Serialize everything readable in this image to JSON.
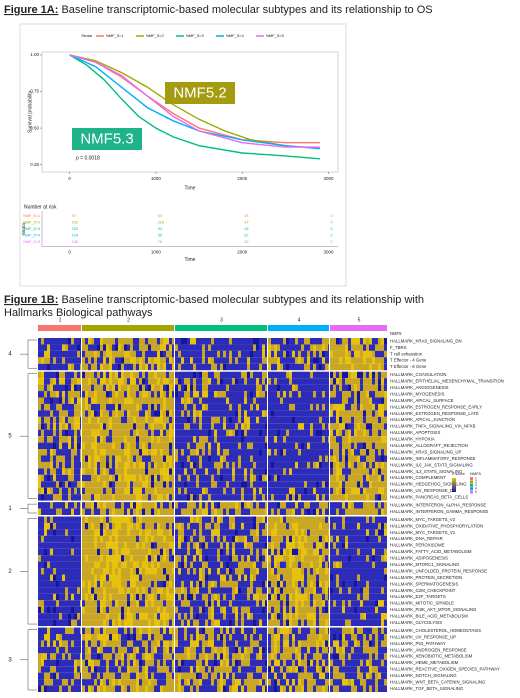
{
  "fig1a": {
    "label": "Figure 1A:",
    "text": " Baseline transcriptomic-based molecular subtypes and its relationship to OS"
  },
  "chart_data": {
    "type": "line",
    "legend_title": "Strata",
    "xlabel": "Time",
    "ylabel": "Survival probability",
    "xlim": [
      -320,
      3110
    ],
    "ylim": [
      0.2,
      1.02
    ],
    "xticks": [
      0,
      1000,
      2000,
      3000
    ],
    "yticks": [
      {
        "value": 1,
        "label": "1.00"
      },
      {
        "value": 0.75,
        "label": "0.75"
      },
      {
        "value": 0.5,
        "label": "0.50"
      },
      {
        "value": 0.25,
        "label": "0.25"
      }
    ],
    "pvalue": "p = 0.0018",
    "annotations": [
      {
        "text": "NMF5.2",
        "color": "#a49c10"
      },
      {
        "text": "NMF5.3",
        "color": "#1fb38a"
      }
    ],
    "series": [
      {
        "name": "NMF_5=1",
        "color": "#f8766d",
        "x": [
          0,
          300,
          600,
          900,
          1200,
          1500,
          2000,
          2500,
          2900
        ],
        "y": [
          1,
          0.95,
          0.85,
          0.72,
          0.6,
          0.5,
          0.42,
          0.4,
          0.4
        ]
      },
      {
        "name": "NMF_5=2",
        "color": "#a3a500",
        "x": [
          0,
          300,
          600,
          900,
          1200,
          1500,
          1800,
          2100,
          2500,
          2900
        ],
        "y": [
          1,
          0.96,
          0.88,
          0.78,
          0.66,
          0.56,
          0.48,
          0.42,
          0.38,
          0.36
        ]
      },
      {
        "name": "NMF_5=3",
        "color": "#00bf7d",
        "x": [
          0,
          200,
          400,
          600,
          800,
          1000,
          1200,
          1500,
          2000,
          2500,
          2900
        ],
        "y": [
          1,
          0.93,
          0.83,
          0.7,
          0.58,
          0.5,
          0.44,
          0.38,
          0.33,
          0.31,
          0.29
        ]
      },
      {
        "name": "NMF_5=4",
        "color": "#00b0f6",
        "x": [
          0,
          300,
          600,
          900,
          1200,
          1500,
          2000,
          2500,
          2900
        ],
        "y": [
          1,
          0.92,
          0.78,
          0.64,
          0.55,
          0.48,
          0.42,
          0.38,
          0.36
        ]
      },
      {
        "name": "NMF_5=5",
        "color": "#e76bf3",
        "x": [
          0,
          300,
          600,
          900,
          1200,
          1500,
          2000,
          2500,
          2900
        ],
        "y": [
          1,
          0.95,
          0.86,
          0.72,
          0.58,
          0.48,
          0.4,
          0.37,
          0.37
        ]
      }
    ]
  },
  "risk_table": {
    "title": "Number at risk",
    "ylabel": "Strata",
    "xlabel": "Time",
    "rows": [
      {
        "name": "NMF_5=1",
        "values": [
          97,
          60,
          15,
          0
        ]
      },
      {
        "name": "NMF_5=2",
        "values": [
          202,
          116,
          37,
          0
        ]
      },
      {
        "name": "NMF_5=3",
        "values": [
          203,
          94,
          18,
          0
        ]
      },
      {
        "name": "NMF_5=4",
        "values": [
          104,
          66,
          22,
          0
        ]
      },
      {
        "name": "NMF_5=5",
        "values": [
          136,
          78,
          25,
          0
        ]
      }
    ]
  },
  "fig1b": {
    "label": "Figure 1B:",
    "lines": [
      " Baseline transcriptomic-based molecular subtypes and its relationship with",
      "Hallmarks Biological pathways"
    ]
  },
  "heatmap": {
    "columns": [
      "1",
      "2",
      "3",
      "4",
      "5"
    ],
    "column_colors": [
      "#f8766d",
      "#a3a500",
      "#00bf7d",
      "#00b0f6",
      "#e76bf3"
    ],
    "annotation_title": "NMF5",
    "legend_title": "z score",
    "groups": [
      {
        "label": "4",
        "rows": [
          "HALLMARK_KRAS_SIGNALING_DN",
          "F_TBRS",
          "T cell exhaustion",
          "T Effector - 4 Gene",
          "T Effector - 8 Gene"
        ]
      },
      {
        "label": "5",
        "rows": [
          "HALLMARK_COAGULATION",
          "HALLMARK_EPITHELIAL_MESENCHYMAL_TRANSITION",
          "HALLMARK_ANGIOGENESIS",
          "HALLMARK_MYOGENESIS",
          "HALLMARK_APICAL_SURFACE",
          "HALLMARK_ESTROGEN_RESPONSE_EARLY",
          "HALLMARK_ESTROGEN_RESPONSE_LATE",
          "HALLMARK_APICAL_JUNCTION",
          "HALLMARK_TNFA_SIGNALING_VIA_NFKB",
          "HALLMARK_APOPTOSIS",
          "HALLMARK_HYPOXIA",
          "HALLMARK_ALLOGRAFT_REJECTION",
          "HALLMARK_KRAS_SIGNALING_UP",
          "HALLMARK_INFLAMMATORY_RESPONSE",
          "HALLMARK_IL6_JAK_STAT3_SIGNALING",
          "HALLMARK_IL2_STAT5_SIGNALING",
          "HALLMARK_COMPLEMENT",
          "HALLMARK_HEDGEHOG_SIGNALING",
          "HALLMARK_UV_RESPONSE_DN",
          "HALLMARK_PANCREAS_BETA_CELLS"
        ]
      },
      {
        "label": "1",
        "rows": [
          "HALLMARK_INTERFERON_ALPHA_RESPONSE",
          "HALLMARK_INTERFERON_GAMMA_RESPONSE"
        ]
      },
      {
        "label": "2",
        "rows": [
          "HALLMARK_MYC_TARGETS_V2",
          "HALLMARK_OXIDATIVE_PHOSPHORYLATION",
          "HALLMARK_MYC_TARGETS_V1",
          "HALLMARK_DNA_REPAIR",
          "HALLMARK_PEROXISOME",
          "HALLMARK_FATTY_ACID_METABOLISM",
          "HALLMARK_ADIPOGENESIS",
          "HALLMARK_MTORC1_SIGNALING",
          "HALLMARK_UNFOLDED_PROTEIN_RESPONSE",
          "HALLMARK_PROTEIN_SECRETION",
          "HALLMARK_SPERMATOGENESIS",
          "HALLMARK_G2M_CHECKPOINT",
          "HALLMARK_E2F_TARGETS",
          "HALLMARK_MITOTIC_SPINDLE",
          "HALLMARK_PI3K_AKT_MTOR_SIGNALING",
          "HALLMARK_BILE_ACID_METABOLISM",
          "HALLMARK_GLYCOLYSIS"
        ]
      },
      {
        "label": "3",
        "rows": [
          "HALLMARK_CHOLESTEROL_HOMEOSTASIS",
          "HALLMARK_UV_RESPONSE_UP",
          "HALLMARK_P53_PATHWAY",
          "HALLMARK_ANDROGEN_RESPONSE",
          "HALLMARK_XENOBIOTIC_METABOLISM",
          "HALLMARK_HEME_METABOLISM",
          "HALLMARK_REACTIVE_OXIGEN_SPECIES_PATHWAY",
          "HALLMARK_NOTCH_SIGNALING",
          "HALLMARK_WNT_BETA_CATENIN_SIGNALING",
          "HALLMARK_TGF_BETA_SIGNALING"
        ]
      }
    ]
  }
}
